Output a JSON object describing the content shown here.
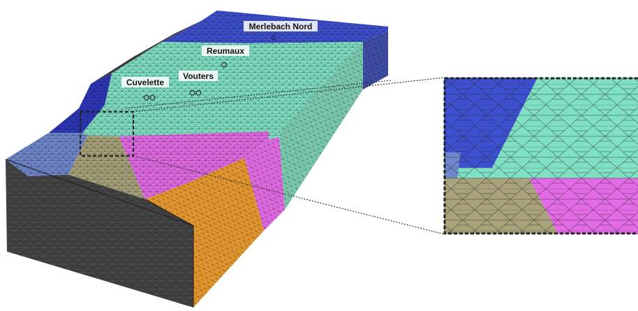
{
  "sites": [
    {
      "id": "merlebach",
      "name": "Merlebach Nord"
    },
    {
      "id": "reumaux",
      "name": "Reumaux"
    },
    {
      "id": "vouters",
      "name": "Vouters"
    },
    {
      "id": "cuvelette",
      "name": "Cuvelette"
    }
  ],
  "zone_colors": {
    "top_blue": "#3d50d0",
    "top_blue_dark": "#2d36b8",
    "side_blue": "#3f4ea8",
    "light_blue": "#6f88cc",
    "aqua": "#7fe0c4",
    "aqua_side": "#7ccdb2",
    "magenta": "#e46be6",
    "olive": "#a8a37a",
    "orange": "#e7992f",
    "dark_grey": "#3b3b3b"
  }
}
